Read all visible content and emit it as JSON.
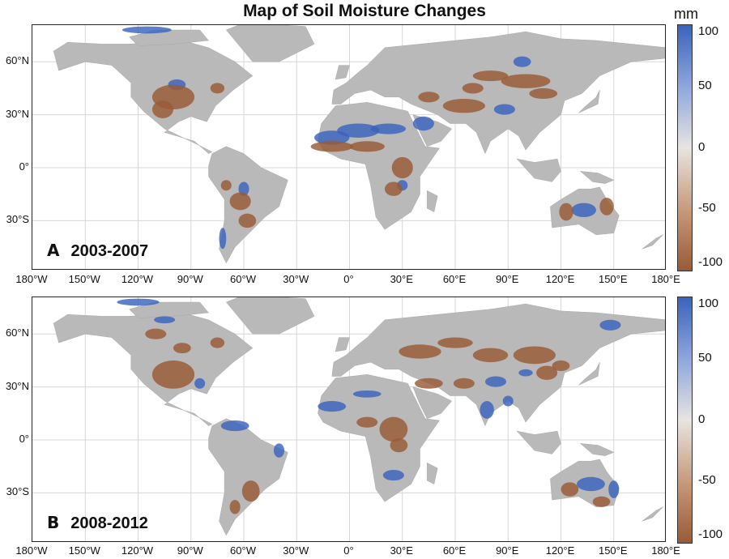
{
  "title": "Map of Soil Moisture Changes",
  "colorbar": {
    "unit": "mm",
    "ticks": [
      "100",
      "50",
      "0",
      "-50",
      "-100"
    ],
    "colors": {
      "wet": "#3a63bd",
      "neutral": "#e8e4e0",
      "dry": "#9a5a36",
      "land": "#b9b9b9"
    }
  },
  "axes": {
    "lat_ticks": [
      "60°N",
      "30°N",
      "0°",
      "30°S"
    ],
    "lon_ticks": [
      "180°W",
      "150°W",
      "120°W",
      "90°W",
      "60°W",
      "30°W",
      "0°",
      "30°E",
      "60°E",
      "90°E",
      "120°E",
      "150°E",
      "180°E"
    ]
  },
  "panels": [
    {
      "letter": "A",
      "period": "2003-2007"
    },
    {
      "letter": "B",
      "period": "2008-2012"
    }
  ]
}
